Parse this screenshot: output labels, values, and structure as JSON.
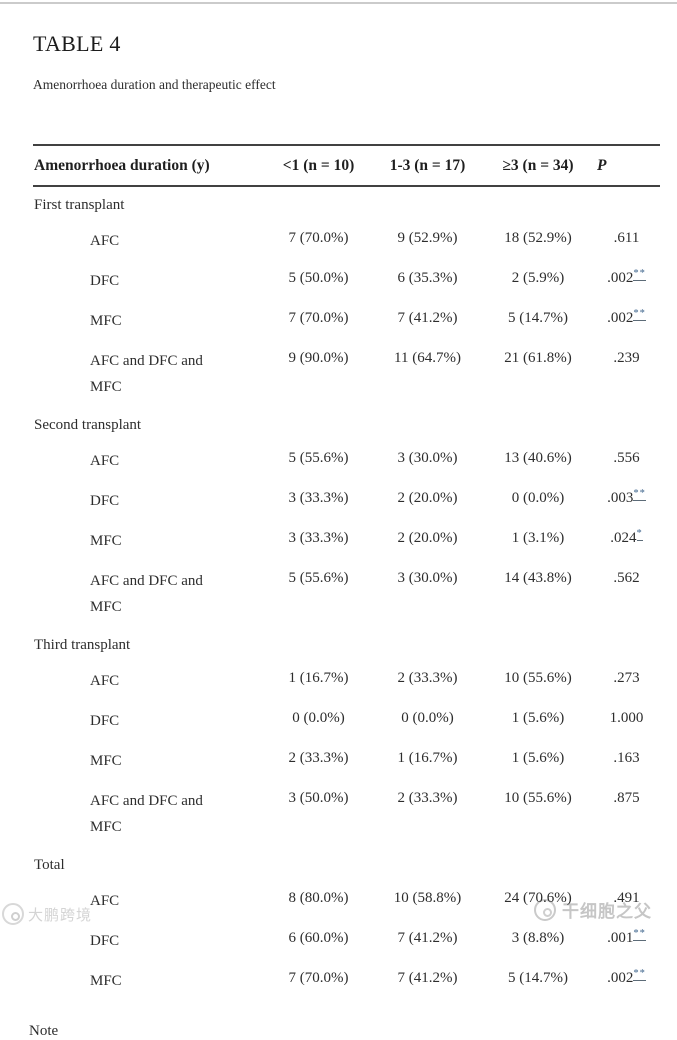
{
  "page": {
    "title": "TABLE 4",
    "subtitle": "Amenorrhoea duration and therapeutic effect",
    "note_label": "Note"
  },
  "table": {
    "columns": [
      "Amenorrhoea duration (y)",
      "<1 (n = 10)",
      "1-3 (n = 17)",
      "≥3 (n = 34)",
      "P"
    ],
    "sections": [
      {
        "label": "First transplant",
        "rows": [
          {
            "label": "AFC",
            "c1": "7 (70.0%)",
            "c2": "9 (52.9%)",
            "c3": "18 (52.9%)",
            "p": ".611",
            "sup": ""
          },
          {
            "label": "DFC",
            "c1": "5 (50.0%)",
            "c2": "6 (35.3%)",
            "c3": "2 (5.9%)",
            "p": ".002",
            "sup": "**"
          },
          {
            "label": "MFC",
            "c1": "7 (70.0%)",
            "c2": "7 (41.2%)",
            "c3": "5 (14.7%)",
            "p": ".002",
            "sup": "**"
          },
          {
            "label": "AFC and DFC and\nMFC",
            "c1": "9 (90.0%)",
            "c2": "11 (64.7%)",
            "c3": "21 (61.8%)",
            "p": ".239",
            "sup": ""
          }
        ]
      },
      {
        "label": "Second transplant",
        "rows": [
          {
            "label": "AFC",
            "c1": "5 (55.6%)",
            "c2": "3 (30.0%)",
            "c3": "13 (40.6%)",
            "p": ".556",
            "sup": ""
          },
          {
            "label": "DFC",
            "c1": "3 (33.3%)",
            "c2": "2 (20.0%)",
            "c3": "0 (0.0%)",
            "p": ".003",
            "sup": "**"
          },
          {
            "label": "MFC",
            "c1": "3 (33.3%)",
            "c2": "2 (20.0%)",
            "c3": "1 (3.1%)",
            "p": ".024",
            "sup": "*"
          },
          {
            "label": "AFC and DFC and\nMFC",
            "c1": "5 (55.6%)",
            "c2": "3 (30.0%)",
            "c3": "14 (43.8%)",
            "p": ".562",
            "sup": ""
          }
        ]
      },
      {
        "label": "Third transplant",
        "rows": [
          {
            "label": "AFC",
            "c1": "1 (16.7%)",
            "c2": "2 (33.3%)",
            "c3": "10 (55.6%)",
            "p": ".273",
            "sup": ""
          },
          {
            "label": "DFC",
            "c1": "0 (0.0%)",
            "c2": "0 (0.0%)",
            "c3": "1 (5.6%)",
            "p": "1.000",
            "sup": ""
          },
          {
            "label": "MFC",
            "c1": "2 (33.3%)",
            "c2": "1 (16.7%)",
            "c3": "1 (5.6%)",
            "p": ".163",
            "sup": ""
          },
          {
            "label": "AFC and DFC and\nMFC",
            "c1": "3 (50.0%)",
            "c2": "2 (33.3%)",
            "c3": "10 (55.6%)",
            "p": ".875",
            "sup": ""
          }
        ]
      },
      {
        "label": "Total",
        "rows": [
          {
            "label": "AFC",
            "c1": "8 (80.0%)",
            "c2": "10 (58.8%)",
            "c3": "24 (70.6%)",
            "p": ".491",
            "sup": ""
          },
          {
            "label": "DFC",
            "c1": "6 (60.0%)",
            "c2": "7 (41.2%)",
            "c3": "3 (8.8%)",
            "p": ".001",
            "sup": "**"
          },
          {
            "label": "MFC",
            "c1": "7 (70.0%)",
            "c2": "7 (41.2%)",
            "c3": "5 (14.7%)",
            "p": ".002",
            "sup": "**"
          }
        ]
      }
    ]
  },
  "watermarks": {
    "left_text": "大鹏跨境",
    "right_text": "干细胞之父"
  },
  "colors": {
    "footnote_link": "#42688f",
    "header_rule": "#414141",
    "page_top_rule": "#cbcbcb",
    "watermark_gray": "#c6c6c6"
  }
}
